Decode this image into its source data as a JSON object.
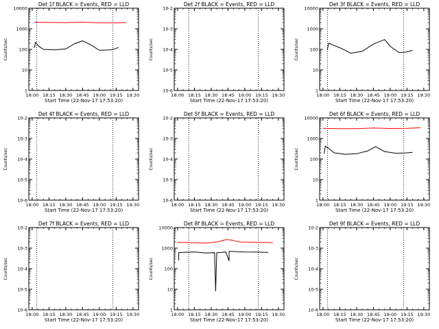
{
  "figure": {
    "xlabel": "Start Time (22-Nov-17 17:53:20)",
    "ylabel": "Counts/sec",
    "xticks": [
      "18:00",
      "18:15",
      "18:30",
      "18:45",
      "19:00",
      "19:15",
      "19:30"
    ]
  },
  "chart_data": [
    {
      "type": "line",
      "title": "Det 1f BLACK = Events, RED = LLD",
      "log_y": true,
      "ylim": [
        1,
        10000
      ],
      "yticks": [
        "1",
        "10",
        "100",
        "1000",
        "10000"
      ],
      "vlines": [
        "18:04",
        "19:12"
      ],
      "series": [
        {
          "name": "LLD",
          "color": "#ff0000",
          "x": [
            "18:02",
            "18:10",
            "18:30",
            "18:45",
            "19:00",
            "19:15",
            "19:24"
          ],
          "y": [
            2100,
            2050,
            2000,
            2100,
            1950,
            1950,
            2000
          ]
        },
        {
          "name": "Events",
          "color": "#000000",
          "x": [
            "18:02",
            "18:03",
            "18:06",
            "18:10",
            "18:20",
            "18:30",
            "18:38",
            "18:45",
            "18:52",
            "19:00",
            "19:10",
            "19:15",
            "19:17"
          ],
          "y": [
            120,
            220,
            140,
            100,
            95,
            105,
            190,
            260,
            170,
            90,
            95,
            110,
            125
          ]
        }
      ]
    },
    {
      "type": "line",
      "title": "Det 2f BLACK = Events, RED = LLD",
      "log_y": true,
      "ylim": [
        1e-06,
        0.01
      ],
      "yticks": [
        "10-6",
        "10-5",
        "10-4",
        "10-3",
        "10-2"
      ],
      "vlines": [
        "18:10",
        "19:12"
      ],
      "series": []
    },
    {
      "type": "line",
      "title": "Det 3f BLACK = Events, RED = LLD",
      "log_y": true,
      "ylim": [
        1,
        10000
      ],
      "yticks": [
        "1",
        "10",
        "100",
        "1000",
        "10000"
      ],
      "vlines": [
        "18:04",
        "19:12"
      ],
      "series": [
        {
          "name": "Events",
          "color": "#000000",
          "x": [
            "18:04",
            "18:05",
            "18:08",
            "18:15",
            "18:25",
            "18:35",
            "18:45",
            "18:55",
            "19:00",
            "19:08",
            "19:15",
            "19:20"
          ],
          "y": [
            100,
            200,
            170,
            120,
            65,
            80,
            180,
            300,
            140,
            70,
            75,
            90
          ]
        }
      ]
    },
    {
      "type": "line",
      "title": "Det 4f BLACK = Events, RED = LLD",
      "log_y": true,
      "ylim": [
        1e-06,
        0.01
      ],
      "yticks": [
        "10-6",
        "10-5",
        "10-4",
        "10-3",
        "10-2"
      ],
      "vlines": [
        "18:04",
        "19:12"
      ],
      "series": []
    },
    {
      "type": "line",
      "title": "Det 5f BLACK = Events, RED = LLD",
      "log_y": true,
      "ylim": [
        1e-06,
        0.01
      ],
      "yticks": [
        "10-6",
        "10-5",
        "10-4",
        "10-3",
        "10-2"
      ],
      "vlines": [
        "18:10",
        "19:12"
      ],
      "series": []
    },
    {
      "type": "line",
      "title": "Det 6f BLACK = Events, RED = LLD",
      "log_y": true,
      "ylim": [
        1,
        10000
      ],
      "yticks": [
        "1",
        "10",
        "100",
        "1000",
        "10000"
      ],
      "vlines": [
        "18:04",
        "19:12"
      ],
      "series": [
        {
          "name": "LLD",
          "color": "#ff0000",
          "x": [
            "18:00",
            "18:15",
            "18:30",
            "18:45",
            "19:00",
            "19:15",
            "19:27"
          ],
          "y": [
            3100,
            3000,
            3000,
            3200,
            3050,
            3100,
            3300
          ]
        },
        {
          "name": "Events",
          "color": "#000000",
          "x": [
            "18:01",
            "18:02",
            "18:05",
            "18:10",
            "18:20",
            "18:30",
            "18:40",
            "18:47",
            "18:55",
            "19:05",
            "19:15",
            "19:20"
          ],
          "y": [
            180,
            420,
            330,
            200,
            170,
            180,
            250,
            400,
            230,
            190,
            200,
            210
          ]
        }
      ]
    },
    {
      "type": "line",
      "title": "Det 7f BLACK = Events, RED = LLD",
      "log_y": true,
      "ylim": [
        1e-06,
        0.01
      ],
      "yticks": [
        "10-6",
        "10-5",
        "10-4",
        "10-3",
        "10-2"
      ],
      "vlines": [
        "18:04",
        "19:12"
      ],
      "series": []
    },
    {
      "type": "line",
      "title": "Det 8f BLACK = Events, RED = LLD",
      "log_y": true,
      "ylim": [
        1,
        10000
      ],
      "yticks": [
        "1",
        "10",
        "100",
        "1000",
        "10000"
      ],
      "vlines": [
        "18:10",
        "19:12"
      ],
      "series": [
        {
          "name": "LLD",
          "color": "#ff0000",
          "x": [
            "18:00",
            "18:15",
            "18:25",
            "18:35",
            "18:40",
            "18:43",
            "18:48",
            "18:52",
            "18:55",
            "19:05",
            "19:15",
            "19:25"
          ],
          "y": [
            1900,
            1850,
            1750,
            2000,
            2300,
            2600,
            2500,
            2200,
            2000,
            1950,
            1900,
            1850
          ]
        },
        {
          "name": "Events",
          "color": "#000000",
          "x": [
            "18:01",
            "18:01",
            "18:05",
            "18:15",
            "18:25",
            "18:33",
            "18:34",
            "18:35",
            "18:40",
            "18:43",
            "18:46",
            "18:46",
            "18:50",
            "19:00",
            "19:10",
            "19:15",
            "19:21"
          ],
          "y": [
            250,
            600,
            620,
            650,
            580,
            600,
            8,
            600,
            620,
            650,
            240,
            700,
            680,
            650,
            640,
            630,
            620
          ]
        }
      ]
    },
    {
      "type": "line",
      "title": "Det 9f BLACK = Events, RED = LLD",
      "log_y": true,
      "ylim": [
        1e-06,
        0.01
      ],
      "yticks": [
        "10-6",
        "10-5",
        "10-4",
        "10-3",
        "10-2"
      ],
      "vlines": [
        "18:04",
        "19:12"
      ],
      "series": []
    }
  ]
}
